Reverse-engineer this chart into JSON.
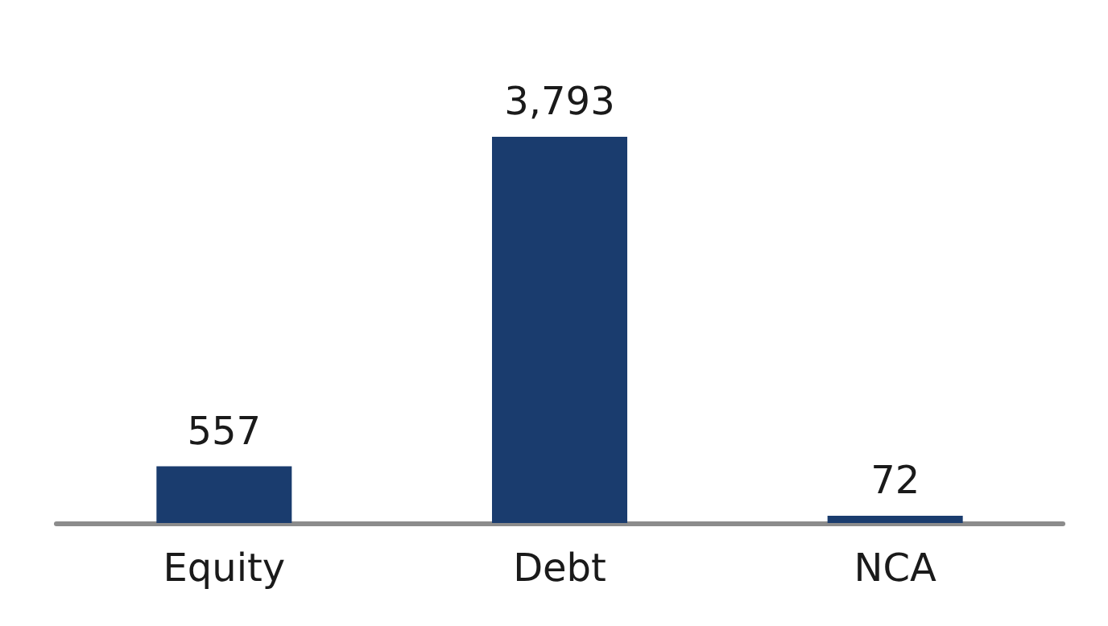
{
  "chart_data": {
    "type": "bar",
    "categories": [
      "Equity",
      "Debt",
      "NCA"
    ],
    "values": [
      557,
      3793,
      72
    ],
    "value_labels": [
      "557",
      "3,793",
      "72"
    ],
    "color": "#1a3c6e"
  }
}
